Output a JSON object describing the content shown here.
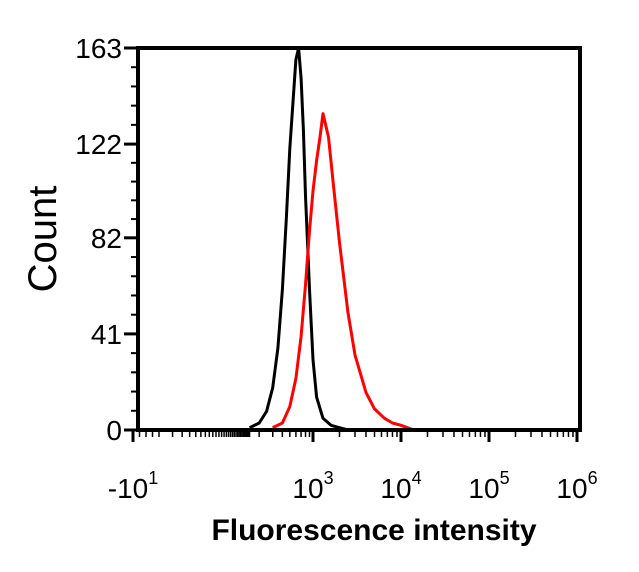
{
  "chart_data": {
    "type": "line",
    "title": "",
    "xlabel": "Fluorescence intensity",
    "ylabel": "Count",
    "xscale": "biexponential",
    "ylim": [
      0,
      163
    ],
    "yticks": [
      {
        "value": 0,
        "label": "0"
      },
      {
        "value": 41,
        "label": "41"
      },
      {
        "value": 82,
        "label": "82"
      },
      {
        "value": 122,
        "label": "122"
      },
      {
        "value": 163,
        "label": "163"
      }
    ],
    "xticks": [
      {
        "value": -10,
        "base": "-10",
        "exp": "1"
      },
      {
        "value": 1000,
        "base": "10",
        "exp": "3"
      },
      {
        "value": 10000,
        "base": "10",
        "exp": "4"
      },
      {
        "value": 100000,
        "base": "10",
        "exp": "5"
      },
      {
        "value": 1000000,
        "base": "10",
        "exp": "6"
      }
    ],
    "grid": false,
    "legend": "none",
    "series": [
      {
        "color": "#000000",
        "x": [
          150,
          200,
          250,
          300,
          350,
          400,
          450,
          500,
          550,
          600,
          650,
          700,
          750,
          800,
          900,
          1000,
          1100,
          1300,
          1600,
          2000,
          2500
        ],
        "y": [
          1,
          3,
          8,
          18,
          35,
          60,
          90,
          120,
          140,
          158,
          163,
          150,
          128,
          100,
          60,
          30,
          14,
          5,
          2,
          1,
          0
        ]
      },
      {
        "color": "#ff0000",
        "x": [
          300,
          400,
          500,
          600,
          700,
          800,
          900,
          1000,
          1100,
          1200,
          1300,
          1500,
          1700,
          2000,
          2500,
          3000,
          4000,
          5000,
          6500,
          8000,
          10000,
          14000
        ],
        "y": [
          1,
          3,
          10,
          22,
          40,
          62,
          85,
          102,
          115,
          125,
          135,
          125,
          105,
          80,
          50,
          32,
          16,
          9,
          5,
          3,
          2,
          0
        ]
      }
    ]
  }
}
